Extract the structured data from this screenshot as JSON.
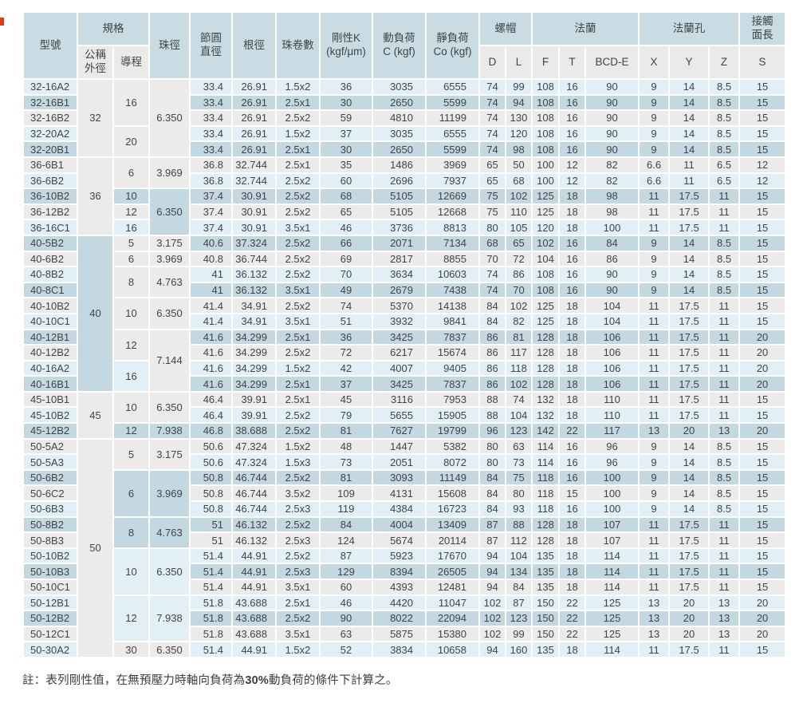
{
  "page": {
    "corner_mark_color": "#e8380d"
  },
  "table": {
    "colors": {
      "header_blue": "#c9dce3",
      "subheader_gray": "#eceae8",
      "row_light_blue": "#e2eff7",
      "row_mid_blue": "#c3d8e0",
      "row_off_white": "#edebe9",
      "gridline": "#ffffff",
      "text": "#3f4449"
    },
    "header": {
      "model": "型號",
      "spec": "規格",
      "outer_dia": "公稱\n外徑",
      "lead": "導程",
      "ball_dia": "珠徑",
      "pitch_dia": "節圓\n直徑",
      "root_dia": "根徑",
      "circuits": "珠卷數",
      "rigidity": "剛性K\n(kgf/μm)",
      "dynamic_load": "動負荷\nC (kgf)",
      "static_load": "靜負荷\nCo (kgf)",
      "nut": "螺帽",
      "flange": "法蘭",
      "flange_holes": "法蘭孔",
      "contact_length": "接觸\n面長",
      "nut_sub": [
        "D",
        "L"
      ],
      "flange_sub": [
        "F",
        "T",
        "BCD-E"
      ],
      "holes_sub": [
        "X",
        "Y",
        "Z"
      ],
      "contact_sub": [
        "S"
      ]
    },
    "outer_groups": [
      {
        "value": "32",
        "span": 5,
        "color": "ow"
      },
      {
        "value": "36",
        "span": 5,
        "color": "ow"
      },
      {
        "value": "40",
        "span": 10,
        "color": "mb"
      },
      {
        "value": "45",
        "span": 3,
        "color": "ow"
      },
      {
        "value": "50",
        "span": 14,
        "color": "ow"
      }
    ],
    "lead_groups": [
      {
        "value": "16",
        "span": 3,
        "color": "ow"
      },
      {
        "value": "20",
        "span": 2,
        "color": "ow"
      },
      {
        "value": "6",
        "span": 2,
        "color": "ow"
      },
      {
        "value": "10",
        "span": 1,
        "color": "mb"
      },
      {
        "value": "12",
        "span": 1,
        "color": "ow"
      },
      {
        "value": "16",
        "span": 1,
        "color": "lb"
      },
      {
        "value": "5",
        "span": 1,
        "color": "ow"
      },
      {
        "value": "6",
        "span": 1,
        "color": "ow"
      },
      {
        "value": "8",
        "span": 2,
        "color": "ow"
      },
      {
        "value": "10",
        "span": 2,
        "color": "ow"
      },
      {
        "value": "12",
        "span": 2,
        "color": "ow"
      },
      {
        "value": "16",
        "span": 2,
        "color": "lb"
      },
      {
        "value": "10",
        "span": 2,
        "color": "ow"
      },
      {
        "value": "12",
        "span": 1,
        "color": "mb"
      },
      {
        "value": "5",
        "span": 2,
        "color": "ow"
      },
      {
        "value": "6",
        "span": 3,
        "color": "mb"
      },
      {
        "value": "8",
        "span": 2,
        "color": "mb"
      },
      {
        "value": "10",
        "span": 3,
        "color": "lb"
      },
      {
        "value": "12",
        "span": 3,
        "color": "lb"
      },
      {
        "value": "30",
        "span": 1,
        "color": "ow"
      }
    ],
    "ball_groups": [
      {
        "value": "6.350",
        "span": 5,
        "color": "ow"
      },
      {
        "value": "3.969",
        "span": 2,
        "color": "ow"
      },
      {
        "value": "6.350",
        "span": 3,
        "color": "mb"
      },
      {
        "value": "3.175",
        "span": 1,
        "color": "ow"
      },
      {
        "value": "3.969",
        "span": 1,
        "color": "ow"
      },
      {
        "value": "4.763",
        "span": 2,
        "color": "ow"
      },
      {
        "value": "6.350",
        "span": 2,
        "color": "ow"
      },
      {
        "value": "7.144",
        "span": 4,
        "color": "ow"
      },
      {
        "value": "6.350",
        "span": 2,
        "color": "ow"
      },
      {
        "value": "7.938",
        "span": 1,
        "color": "mb"
      },
      {
        "value": "3.175",
        "span": 2,
        "color": "ow"
      },
      {
        "value": "3.969",
        "span": 3,
        "color": "mb"
      },
      {
        "value": "4.763",
        "span": 2,
        "color": "mb"
      },
      {
        "value": "6.350",
        "span": 3,
        "color": "lb"
      },
      {
        "value": "7.938",
        "span": 3,
        "color": "lb"
      },
      {
        "value": "6.350",
        "span": 1,
        "color": "ow"
      }
    ],
    "rows": [
      [
        "32-16A2",
        "33.4",
        "26.91",
        "1.5x2",
        "36",
        "3035",
        "6555",
        "74",
        "99",
        "108",
        "16",
        "90",
        "9",
        "14",
        "8.5",
        "15"
      ],
      [
        "32-16B1",
        "33.4",
        "26.91",
        "2.5x1",
        "30",
        "2650",
        "5599",
        "74",
        "94",
        "108",
        "16",
        "90",
        "9",
        "14",
        "8.5",
        "15"
      ],
      [
        "32-16B2",
        "33.4",
        "26.91",
        "2.5x2",
        "59",
        "4810",
        "11199",
        "74",
        "130",
        "108",
        "16",
        "90",
        "9",
        "14",
        "8.5",
        "15"
      ],
      [
        "32-20A2",
        "33.4",
        "26.91",
        "1.5x2",
        "37",
        "3035",
        "6555",
        "74",
        "120",
        "108",
        "16",
        "90",
        "9",
        "14",
        "8.5",
        "15"
      ],
      [
        "32-20B1",
        "33.4",
        "26.91",
        "2.5x1",
        "30",
        "2650",
        "5599",
        "74",
        "98",
        "108",
        "16",
        "90",
        "9",
        "14",
        "8.5",
        "15"
      ],
      [
        "36-6B1",
        "36.8",
        "32.744",
        "2.5x1",
        "35",
        "1486",
        "3969",
        "65",
        "50",
        "100",
        "12",
        "82",
        "6.6",
        "11",
        "6.5",
        "12"
      ],
      [
        "36-6B2",
        "36.8",
        "32.744",
        "2.5x2",
        "60",
        "2696",
        "7937",
        "65",
        "68",
        "100",
        "12",
        "82",
        "6.6",
        "11",
        "6.5",
        "12"
      ],
      [
        "36-10B2",
        "37.4",
        "30.91",
        "2.5x2",
        "68",
        "5105",
        "12669",
        "75",
        "102",
        "125",
        "18",
        "98",
        "11",
        "17.5",
        "11",
        "15"
      ],
      [
        "36-12B2",
        "37.4",
        "30.91",
        "2.5x2",
        "65",
        "5105",
        "12668",
        "75",
        "110",
        "125",
        "18",
        "98",
        "11",
        "17.5",
        "11",
        "15"
      ],
      [
        "36-16C1",
        "37.4",
        "30.91",
        "3.5x1",
        "46",
        "3736",
        "8813",
        "80",
        "105",
        "120",
        "18",
        "100",
        "11",
        "17.5",
        "11",
        "15"
      ],
      [
        "40-5B2",
        "40.6",
        "37.324",
        "2.5x2",
        "66",
        "2071",
        "7134",
        "68",
        "65",
        "102",
        "16",
        "84",
        "9",
        "14",
        "8.5",
        "15"
      ],
      [
        "40-6B2",
        "40.8",
        "36.744",
        "2.5x2",
        "69",
        "2817",
        "8855",
        "70",
        "72",
        "104",
        "16",
        "86",
        "9",
        "14",
        "8.5",
        "15"
      ],
      [
        "40-8B2",
        "41",
        "36.132",
        "2.5x2",
        "70",
        "3634",
        "10603",
        "74",
        "86",
        "108",
        "16",
        "90",
        "9",
        "14",
        "8.5",
        "15"
      ],
      [
        "40-8C1",
        "41",
        "36.132",
        "3.5x1",
        "49",
        "2679",
        "7438",
        "74",
        "70",
        "108",
        "16",
        "90",
        "9",
        "14",
        "8.5",
        "15"
      ],
      [
        "40-10B2",
        "41.4",
        "34.91",
        "2.5x2",
        "74",
        "5370",
        "14138",
        "84",
        "102",
        "125",
        "18",
        "104",
        "11",
        "17.5",
        "11",
        "15"
      ],
      [
        "40-10C1",
        "41.4",
        "34.91",
        "3.5x1",
        "51",
        "3932",
        "9841",
        "84",
        "82",
        "125",
        "18",
        "104",
        "11",
        "17.5",
        "11",
        "15"
      ],
      [
        "40-12B1",
        "41.6",
        "34.299",
        "2.5x1",
        "36",
        "3425",
        "7837",
        "86",
        "81",
        "128",
        "18",
        "106",
        "11",
        "17.5",
        "11",
        "20"
      ],
      [
        "40-12B2",
        "41.6",
        "34.299",
        "2.5x2",
        "72",
        "6217",
        "15674",
        "86",
        "117",
        "128",
        "18",
        "106",
        "11",
        "17.5",
        "11",
        "20"
      ],
      [
        "40-16A2",
        "41.6",
        "34.299",
        "1.5x2",
        "42",
        "4007",
        "9405",
        "86",
        "118",
        "128",
        "18",
        "106",
        "11",
        "17.5",
        "11",
        "20"
      ],
      [
        "40-16B1",
        "41.6",
        "34.299",
        "2.5x1",
        "37",
        "3425",
        "7837",
        "86",
        "102",
        "128",
        "18",
        "106",
        "11",
        "17.5",
        "11",
        "20"
      ],
      [
        "45-10B1",
        "46.4",
        "39.91",
        "2.5x1",
        "45",
        "3116",
        "7953",
        "88",
        "74",
        "132",
        "18",
        "110",
        "11",
        "17.5",
        "11",
        "15"
      ],
      [
        "45-10B2",
        "46.4",
        "39.91",
        "2.5x2",
        "79",
        "5655",
        "15905",
        "88",
        "104",
        "132",
        "18",
        "110",
        "11",
        "17.5",
        "11",
        "15"
      ],
      [
        "45-12B2",
        "46.8",
        "38.688",
        "2.5x2",
        "81",
        "7627",
        "19799",
        "96",
        "123",
        "142",
        "22",
        "117",
        "13",
        "20",
        "13",
        "20"
      ],
      [
        "50-5A2",
        "50.6",
        "47.324",
        "1.5x2",
        "48",
        "1447",
        "5382",
        "80",
        "63",
        "114",
        "16",
        "96",
        "9",
        "14",
        "8.5",
        "15"
      ],
      [
        "50-5A3",
        "50.6",
        "47.324",
        "1.5x3",
        "73",
        "2051",
        "8072",
        "80",
        "73",
        "114",
        "16",
        "96",
        "9",
        "14",
        "8.5",
        "15"
      ],
      [
        "50-6B2",
        "50.8",
        "46.744",
        "2.5x2",
        "81",
        "3093",
        "11149",
        "84",
        "75",
        "118",
        "16",
        "100",
        "9",
        "14",
        "8.5",
        "15"
      ],
      [
        "50-6C2",
        "50.8",
        "46.744",
        "3.5x2",
        "109",
        "4131",
        "15608",
        "84",
        "80",
        "118",
        "15",
        "100",
        "9",
        "14",
        "8.5",
        "15"
      ],
      [
        "50-6B3",
        "50.8",
        "46.744",
        "2.5x3",
        "119",
        "4384",
        "16723",
        "84",
        "93",
        "118",
        "16",
        "100",
        "9",
        "14",
        "8.5",
        "15"
      ],
      [
        "50-8B2",
        "51",
        "46.132",
        "2.5x2",
        "84",
        "4004",
        "13409",
        "87",
        "88",
        "128",
        "18",
        "107",
        "11",
        "17.5",
        "11",
        "15"
      ],
      [
        "50-8B3",
        "51",
        "46.132",
        "2.5x3",
        "124",
        "5674",
        "20114",
        "87",
        "112",
        "128",
        "18",
        "107",
        "11",
        "17.5",
        "11",
        "15"
      ],
      [
        "50-10B2",
        "51.4",
        "44.91",
        "2.5x2",
        "87",
        "5923",
        "17670",
        "94",
        "104",
        "135",
        "18",
        "114",
        "11",
        "17.5",
        "11",
        "15"
      ],
      [
        "50-10B3",
        "51.4",
        "44.91",
        "2.5x3",
        "129",
        "8394",
        "26505",
        "94",
        "134",
        "135",
        "18",
        "114",
        "11",
        "17.5",
        "11",
        "15"
      ],
      [
        "50-10C1",
        "51.4",
        "44.91",
        "3.5x1",
        "60",
        "4393",
        "12481",
        "94",
        "84",
        "135",
        "18",
        "114",
        "11",
        "17.5",
        "11",
        "15"
      ],
      [
        "50-12B1",
        "51.8",
        "43.688",
        "2.5x1",
        "46",
        "4420",
        "11047",
        "102",
        "87",
        "150",
        "22",
        "125",
        "13",
        "20",
        "13",
        "20"
      ],
      [
        "50-12B2",
        "51.8",
        "43.688",
        "2.5x2",
        "90",
        "8022",
        "22094",
        "102",
        "123",
        "150",
        "22",
        "125",
        "13",
        "20",
        "13",
        "20"
      ],
      [
        "50-12C1",
        "51.8",
        "43.688",
        "3.5x1",
        "63",
        "5875",
        "15380",
        "102",
        "99",
        "150",
        "22",
        "125",
        "13",
        "20",
        "13",
        "20"
      ],
      [
        "50-30A2",
        "51.4",
        "44.91",
        "1.5x2",
        "52",
        "3834",
        "10658",
        "94",
        "160",
        "135",
        "18",
        "114",
        "11",
        "17.5",
        "11",
        "15"
      ]
    ]
  },
  "note": {
    "prefix": "註：表列剛性值，在無預壓力時軸向負荷為",
    "bold": "30%",
    "suffix": "動負荷的條件下計算之。"
  }
}
